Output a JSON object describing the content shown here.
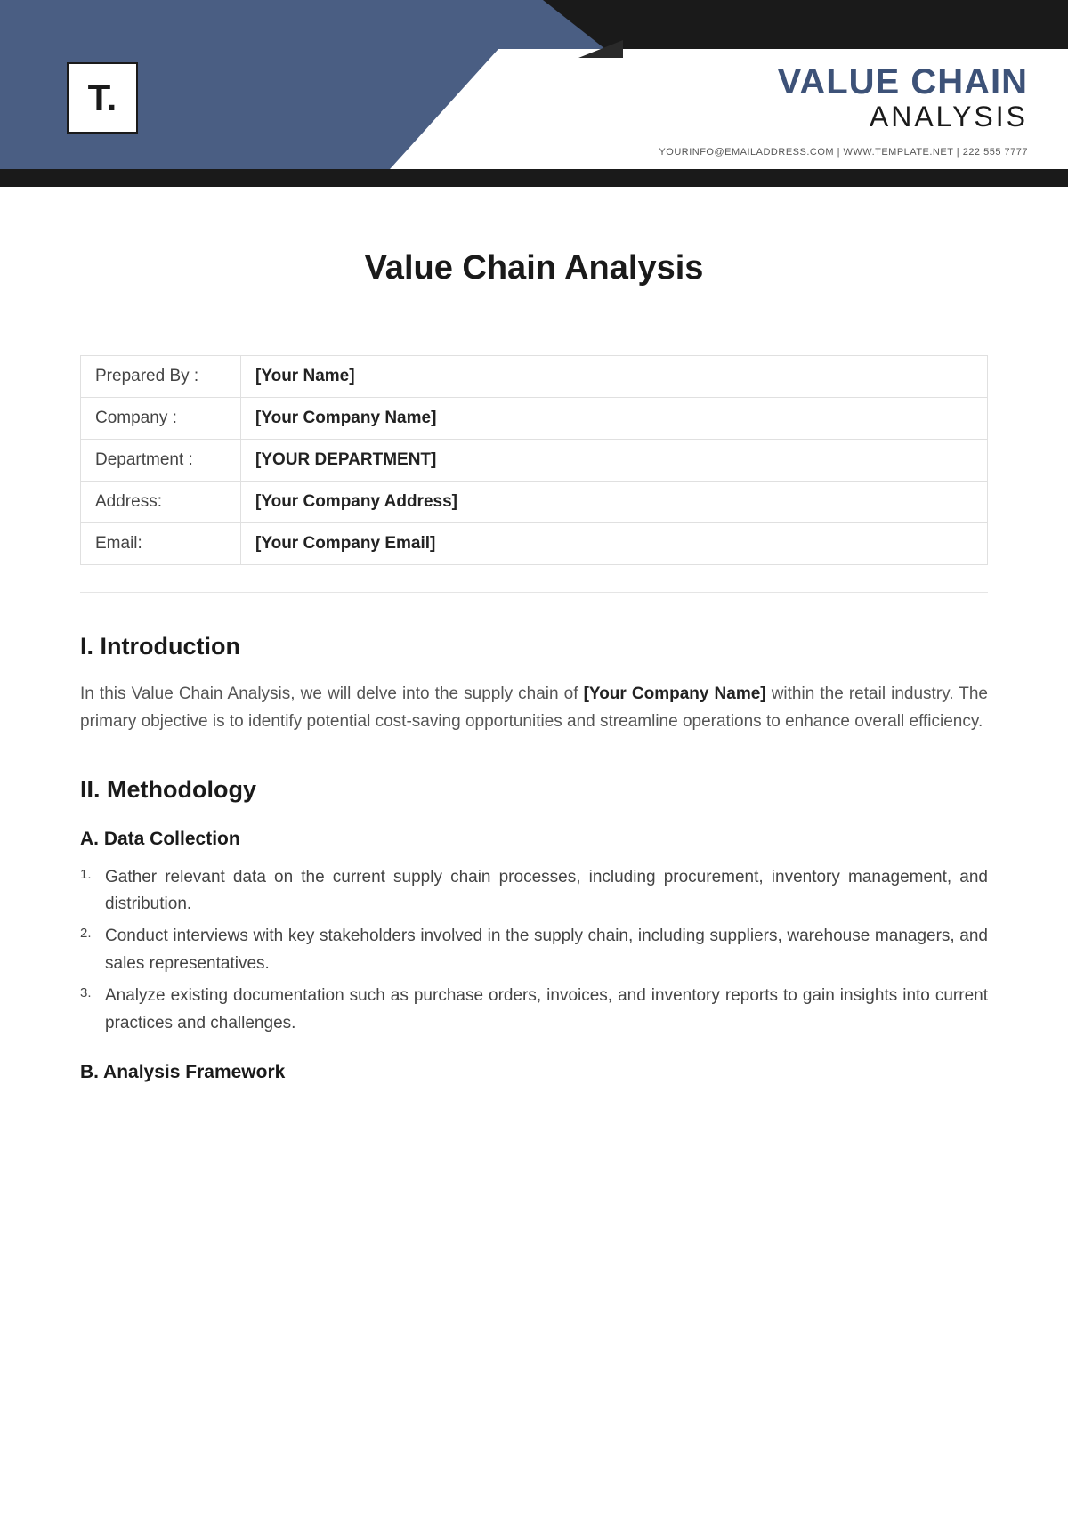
{
  "header": {
    "logo_text": "T.",
    "title_line1": "VALUE CHAIN",
    "title_line2": "ANALYSIS",
    "contact": "YOURINFO@EMAILADDRESS.COM | WWW.TEMPLATE.NET | 222 555 7777",
    "colors": {
      "blue": "#4a5e83",
      "dark": "#1a1a1a",
      "title_blue": "#3d5278"
    }
  },
  "doc_title": "Value Chain Analysis",
  "info_table": [
    {
      "label": "Prepared By :",
      "value": "[Your Name]"
    },
    {
      "label": "Company :",
      "value": "[Your Company Name]"
    },
    {
      "label": "Department :",
      "value": "[YOUR DEPARTMENT]"
    },
    {
      "label": "Address:",
      "value": "[Your Company Address]"
    },
    {
      "label": "Email:",
      "value": "[Your Company Email]"
    }
  ],
  "sections": {
    "intro": {
      "heading": "I. Introduction",
      "text_pre": "In this Value Chain Analysis, we will delve into the supply chain of ",
      "text_bold": "[Your Company Name]",
      "text_post": " within the retail industry. The primary objective is to identify potential cost-saving opportunities and streamline operations to enhance overall efficiency."
    },
    "methodology": {
      "heading": "II. Methodology",
      "sub_a": {
        "heading": "A. Data Collection",
        "items": [
          "Gather relevant data on the current supply chain processes, including procurement, inventory management, and distribution.",
          "Conduct interviews with key stakeholders involved in the supply chain, including suppliers, warehouse managers, and sales representatives.",
          "Analyze existing documentation such as purchase orders, invoices, and inventory reports to gain insights into current practices and challenges."
        ]
      },
      "sub_b": {
        "heading": "B. Analysis Framework"
      }
    }
  }
}
